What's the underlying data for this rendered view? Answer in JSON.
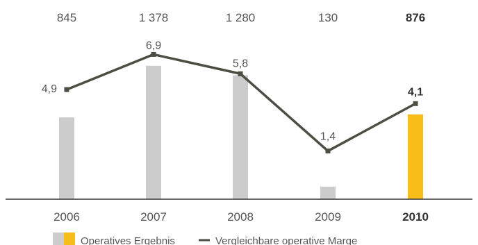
{
  "chart_data": {
    "type": "bar+line",
    "categories": [
      "2006",
      "2007",
      "2008",
      "2009",
      "2010"
    ],
    "highlight_index": 4,
    "top_value_labels": [
      "845",
      "1 378",
      "1 280",
      "130",
      "876"
    ],
    "series": [
      {
        "name": "Operatives Ergebnis",
        "type": "bar",
        "values": [
          845,
          1378,
          1280,
          130,
          876
        ],
        "color": "#cccccc",
        "highlight_color": "#f9bd1a"
      },
      {
        "name": "Vergleichbare operative Marge",
        "type": "line",
        "values": [
          4.9,
          6.9,
          5.8,
          1.4,
          4.1
        ],
        "labels": [
          "4,9",
          "6,9",
          "5,8",
          "1,4",
          "4,1"
        ],
        "color": "#4d4d43"
      }
    ],
    "legend": {
      "position": "bottom-left",
      "items": [
        {
          "label": "Operatives Ergebnis"
        },
        {
          "label": "Vergleichbare operative Marge"
        }
      ]
    },
    "axis_color": "#333333"
  }
}
